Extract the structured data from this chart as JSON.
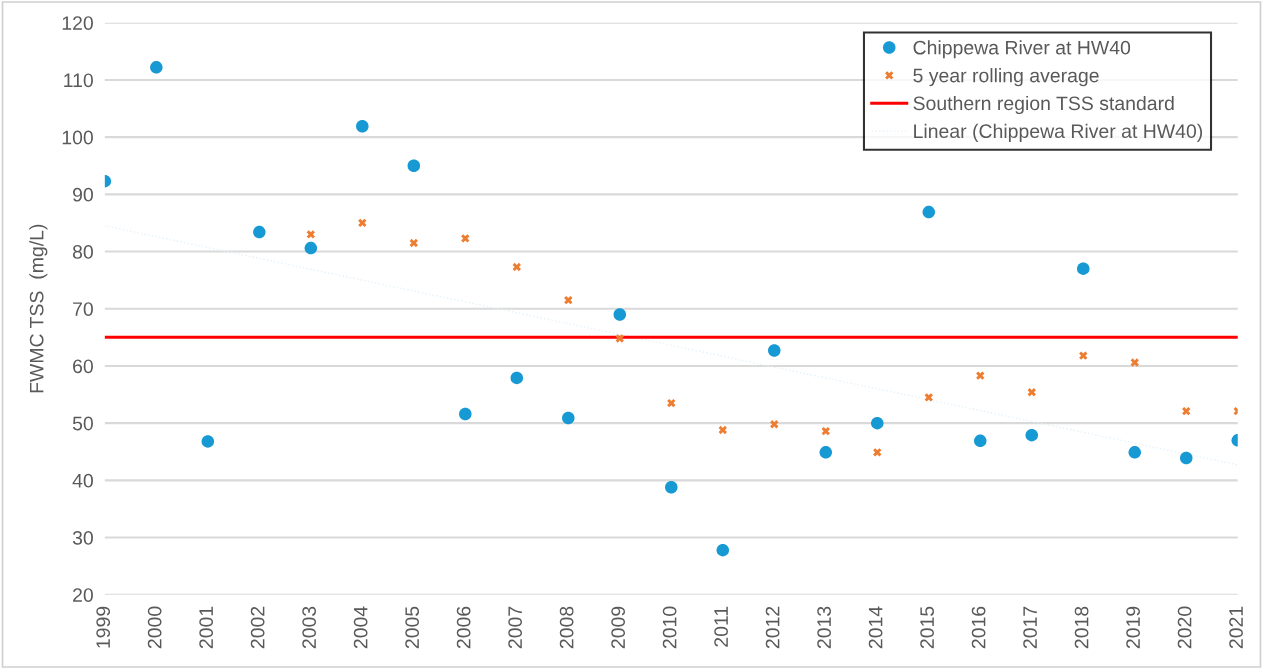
{
  "chart_data": {
    "type": "scatter",
    "ylabel": "FWMC TSS  (mg/L)",
    "categories": [
      "1999",
      "2000",
      "2001",
      "2002",
      "2003",
      "2004",
      "2005",
      "2006",
      "2007",
      "2008",
      "2009",
      "2010",
      "2011",
      "2012",
      "2013",
      "2014",
      "2015",
      "2016",
      "2017",
      "2018",
      "2019",
      "2020",
      "2021"
    ],
    "series": [
      {
        "name": "Chippewa River at HW40",
        "color": "#1799d3",
        "marker": "circle",
        "values": [
          92.3,
          112.2,
          46.8,
          83.4,
          80.6,
          101.9,
          95,
          51.6,
          57.9,
          50.9,
          69,
          38.8,
          27.8,
          62.7,
          44.9,
          50,
          86.9,
          46.9,
          47.9,
          77,
          44.9,
          43.9,
          47
        ]
      },
      {
        "name": "5 year rolling average",
        "color": "#ed7d31",
        "marker": "cross",
        "values": [
          null,
          null,
          null,
          null,
          83,
          85,
          81.5,
          82.3,
          77.3,
          71.5,
          64.8,
          53.5,
          48.8,
          49.8,
          48.6,
          44.9,
          54.5,
          58.3,
          55.4,
          61.8,
          60.6,
          52.1,
          52.1
        ]
      },
      {
        "name": "Linear (Chippewa River at HW40)",
        "type": "line",
        "color": "#e3f1f9",
        "line_style": "dotted",
        "marker": "none",
        "values": [
          84.5,
          82.6,
          80.7,
          78.8,
          76.9,
          75.0,
          73.1,
          71.2,
          69.3,
          67.4,
          65.5,
          63.6,
          61.7,
          59.8,
          57.9,
          56.0,
          54.1,
          52.2,
          50.3,
          48.4,
          46.5,
          44.6,
          42.7
        ]
      }
    ],
    "ref_lines": [
      {
        "axis": "y",
        "value": 65,
        "label": "Southern region TSS standard",
        "color": "#ff0000"
      }
    ],
    "ylim": [
      20,
      120
    ],
    "yticks": [
      20,
      30,
      40,
      50,
      60,
      70,
      80,
      90,
      100,
      110,
      120
    ],
    "grid": "y",
    "legend": "top right"
  }
}
